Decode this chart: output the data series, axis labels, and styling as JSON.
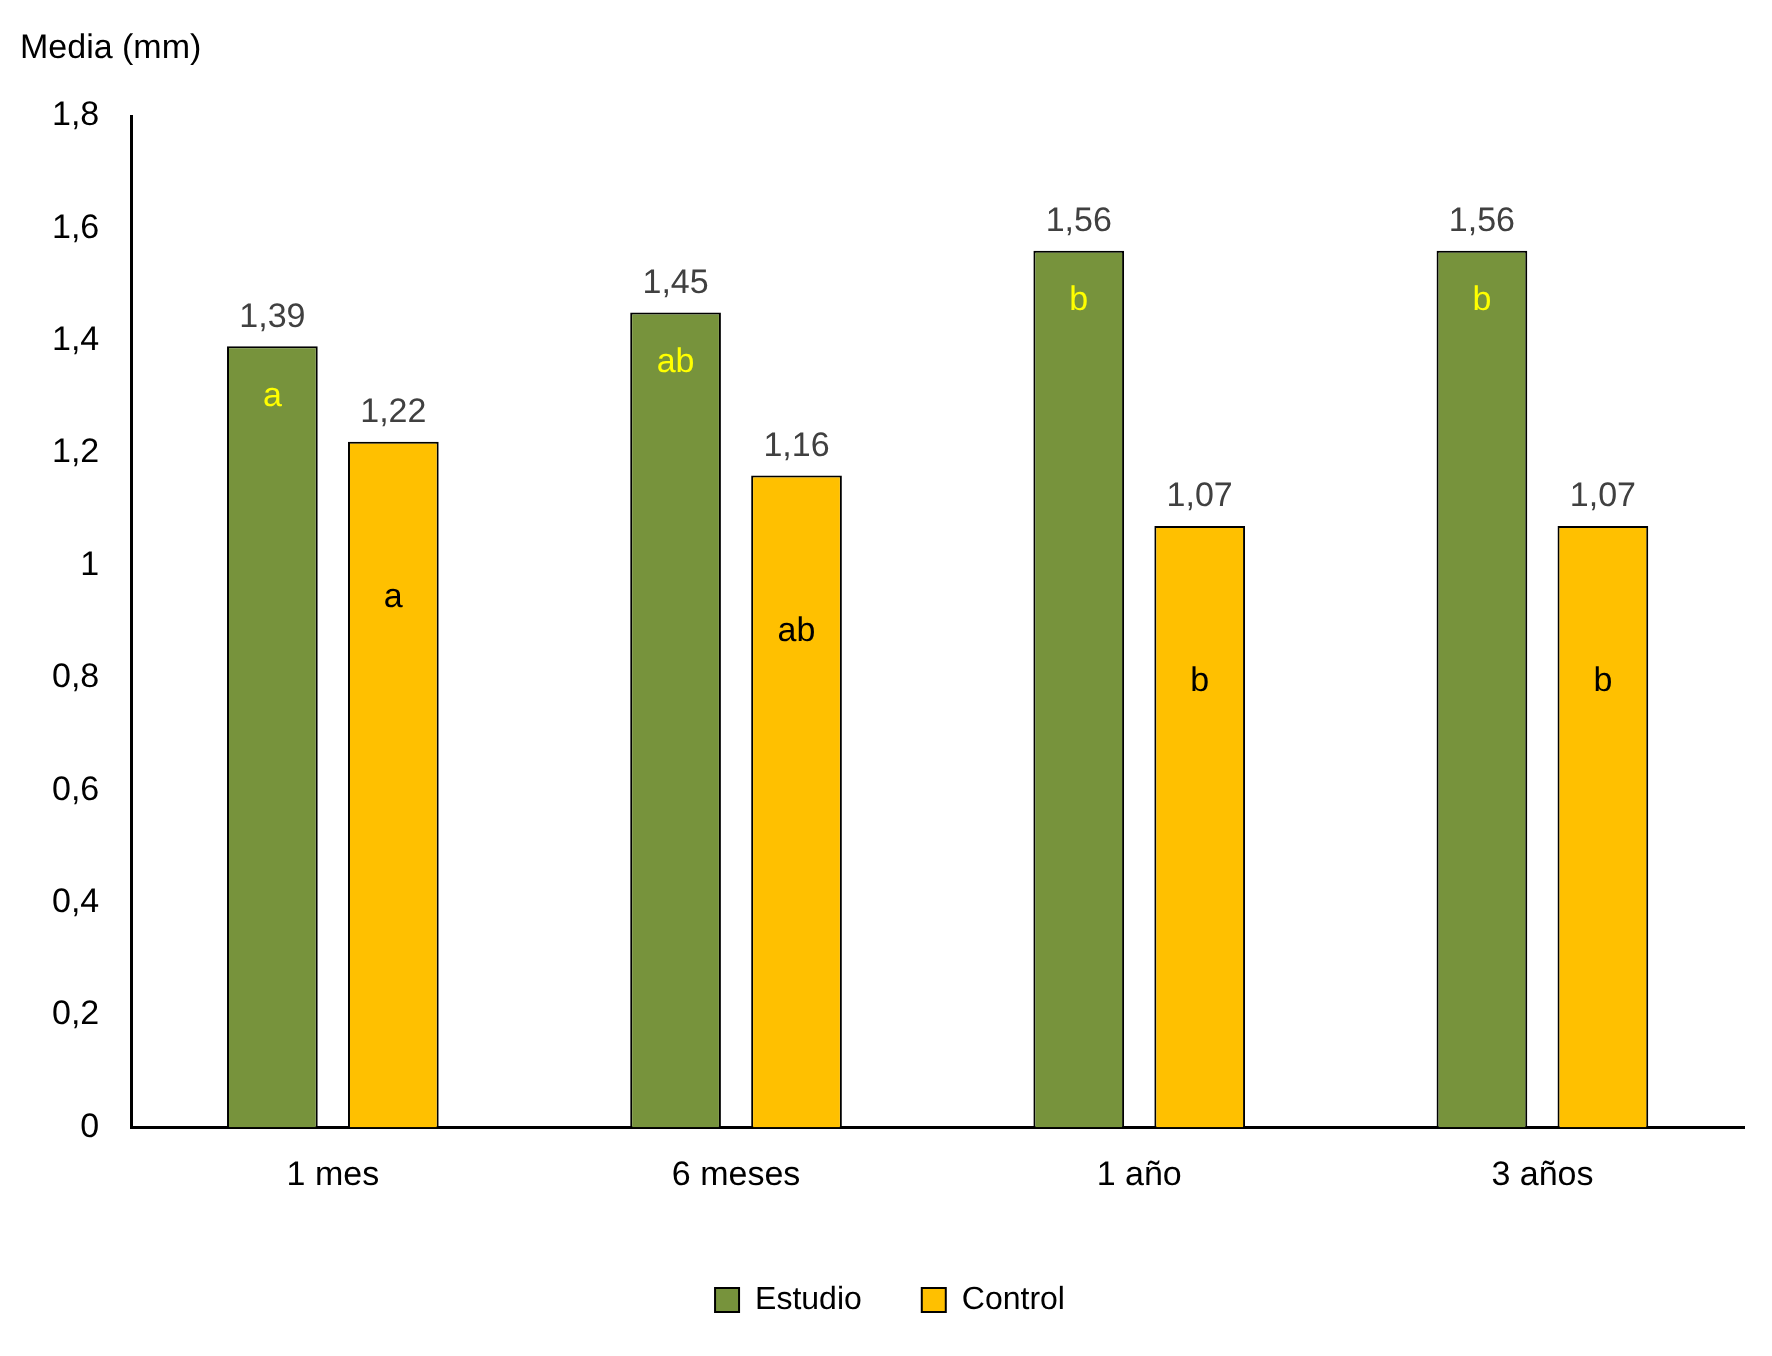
{
  "chart_data": {
    "type": "bar",
    "ylabel": "Media (mm)",
    "categories": [
      "1 mes",
      "6 meses",
      "1 año",
      "3 años"
    ],
    "series": [
      {
        "name": "Estudio",
        "color": "#77933c",
        "values": [
          1.39,
          1.45,
          1.56,
          1.56
        ],
        "value_labels": [
          "1,39",
          "1,45",
          "1,56",
          "1,56"
        ]
      },
      {
        "name": "Control",
        "color": "#ffc000",
        "values": [
          1.22,
          1.16,
          1.07,
          1.07
        ],
        "value_labels": [
          "1,22",
          "1,16",
          "1,07",
          "1,07"
        ]
      }
    ],
    "ylim": [
      0,
      1.8
    ],
    "yticks": [
      0,
      {
        "value": 0.2,
        "label": "0,2"
      },
      {
        "value": 0.4,
        "label": "0,4"
      },
      {
        "value": 0.6,
        "label": "0,6"
      },
      {
        "value": 0.8,
        "label": "0,8"
      },
      1,
      {
        "value": 1.2,
        "label": "1,2"
      },
      {
        "value": 1.4,
        "label": "1,4"
      },
      {
        "value": 1.6,
        "label": "1,6"
      },
      {
        "value": 1.8,
        "label": "1,8"
      }
    ],
    "grid": false,
    "legend": "bottom",
    "annotations": [
      "a",
      "a",
      "ab",
      "ab",
      "b",
      "b",
      "b",
      "b"
    ]
  }
}
